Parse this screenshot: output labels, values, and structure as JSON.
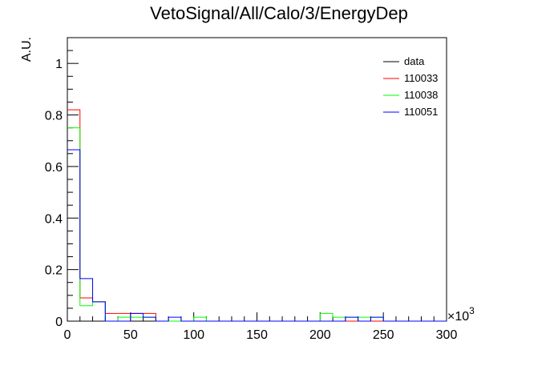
{
  "chart_data": {
    "type": "histogram",
    "title": "VetoSignal/All/Calo/3/EnergyDep",
    "xlabel": "",
    "ylabel": "A.U.",
    "x_multiplier_label": "×10",
    "x_multiplier_exponent": "3",
    "xlim": [
      0,
      300
    ],
    "ylim": [
      0,
      1.1
    ],
    "x_ticks": [
      0,
      50,
      100,
      150,
      200,
      250,
      300
    ],
    "x_tick_labels": [
      "0",
      "50",
      "100",
      "150",
      "200",
      "250",
      "300"
    ],
    "y_ticks": [
      0,
      0.2,
      0.4,
      0.6,
      0.8,
      1
    ],
    "y_tick_labels": [
      "0",
      "0.2",
      "0.4",
      "0.6",
      "0.8",
      "1"
    ],
    "bin_width": 10,
    "legend_position": "top-right",
    "series": [
      {
        "name": "data",
        "color": "#000000",
        "values": [
          0,
          0,
          0,
          0,
          0,
          0,
          0,
          0,
          0,
          0,
          0,
          0,
          0,
          0,
          0,
          0,
          0,
          0,
          0,
          0,
          0,
          0,
          0,
          0,
          0,
          0,
          0,
          0,
          0,
          0
        ]
      },
      {
        "name": "110033",
        "color": "#ff0000",
        "values": [
          0.82,
          0.09,
          0.075,
          0.03,
          0.03,
          0.03,
          0.03,
          0,
          0,
          0,
          0,
          0,
          0,
          0,
          0,
          0,
          0,
          0,
          0,
          0,
          0,
          0,
          0,
          0,
          0,
          0,
          0,
          0,
          0,
          0
        ]
      },
      {
        "name": "110038",
        "color": "#00ff00",
        "values": [
          0.75,
          0.06,
          0.075,
          0,
          0.015,
          0.015,
          0.015,
          0,
          0,
          0,
          0.015,
          0,
          0,
          0,
          0,
          0,
          0,
          0,
          0,
          0,
          0.03,
          0.015,
          0.015,
          0.015,
          0.015,
          0,
          0,
          0,
          0,
          0
        ]
      },
      {
        "name": "110051",
        "color": "#0000ff",
        "values": [
          0.665,
          0.165,
          0.075,
          0,
          0,
          0.03,
          0.015,
          0,
          0.015,
          0,
          0,
          0,
          0,
          0,
          0,
          0,
          0,
          0,
          0,
          0,
          0,
          0,
          0.015,
          0,
          0.015,
          0,
          0,
          0,
          0,
          0
        ]
      }
    ]
  }
}
